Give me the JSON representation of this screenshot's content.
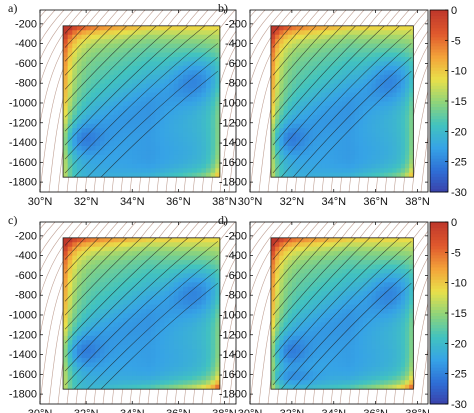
{
  "chart_data": {
    "type": "heatmap",
    "description_free": true,
    "colormap": [
      "#3b3fa8",
      "#2e6fd6",
      "#36a3e6",
      "#42c3bf",
      "#8fd47a",
      "#e9e04a",
      "#f3a33a",
      "#e0592d",
      "#c0392b"
    ],
    "clim": [
      -30,
      0
    ],
    "colorbar_ticks": [
      "0",
      "-5",
      "-10",
      "-15",
      "-20",
      "-25",
      "-30"
    ],
    "x_ticks": [
      "30°N",
      "32°N",
      "34°N",
      "36°N",
      "38°N"
    ],
    "x_tick_values": [
      30,
      32,
      34,
      36,
      38
    ],
    "xlim": [
      30,
      38.5
    ],
    "y_ticks": [
      "-200",
      "-400",
      "-600",
      "-800",
      "-1000",
      "-1200",
      "-1400",
      "-1600",
      "-1800"
    ],
    "y_tick_values": [
      -200,
      -400,
      -600,
      -800,
      -1000,
      -1200,
      -1400,
      -1600,
      -1800
    ],
    "ylim": [
      -1900,
      -60
    ],
    "panels": [
      {
        "label": "a)",
        "region": {
          "lat_range": [
            31.0,
            37.8
          ],
          "depth_range": [
            -1750,
            -220
          ]
        },
        "colorbar": true
      },
      {
        "label": "b)",
        "region": {
          "lat_range": [
            31.0,
            37.8
          ],
          "depth_range": [
            -1750,
            -220
          ]
        },
        "colorbar": false
      },
      {
        "label": "c)",
        "region": {
          "lat_range": [
            31.0,
            37.8
          ],
          "depth_range": [
            -1750,
            -220
          ]
        },
        "colorbar": true
      },
      {
        "label": "d)",
        "region": {
          "lat_range": [
            31.0,
            37.8
          ],
          "depth_range": [
            -1750,
            -220
          ]
        },
        "colorbar": false
      }
    ]
  }
}
